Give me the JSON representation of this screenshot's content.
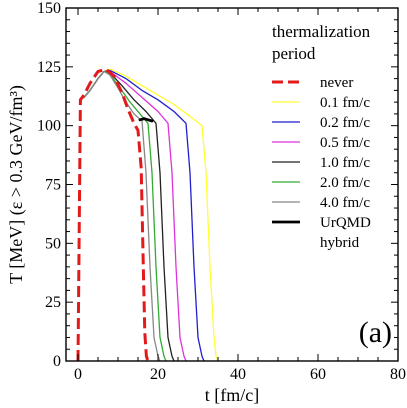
{
  "chart_data": {
    "type": "line",
    "xlabel": "t [fm/c]",
    "ylabel": "T [MeV] (ε > 0.3 GeV/fm³)",
    "xlim": [
      -3,
      80
    ],
    "ylim": [
      0,
      150
    ],
    "x_ticks": [
      0,
      20,
      40,
      60,
      80
    ],
    "y_ticks": [
      0,
      25,
      50,
      75,
      100,
      125,
      150
    ],
    "x_minor_step": 5,
    "y_minor_step": 5,
    "grid": false,
    "legend_title": [
      "thermalization",
      "period"
    ],
    "legend_position": "top-right",
    "annotation": "(a)",
    "series": [
      {
        "name": "never",
        "color": "#e31a1c",
        "dash": "dashed",
        "width": 3,
        "x": [
          0.0,
          0.6,
          1.5,
          3.0,
          5.0,
          7.0,
          9.0,
          11.0,
          12.5,
          14.0,
          15.0,
          15.8,
          16.3,
          16.7,
          17.1,
          17.5
        ],
        "y": [
          0,
          111,
          113,
          118,
          123,
          124,
          121,
          114,
          107,
          101,
          98,
          82,
          42,
          12,
          2,
          0
        ]
      },
      {
        "name": "0.1 fm/c",
        "color": "#ffff33",
        "dash": "solid",
        "width": 1.3,
        "x": [
          1.5,
          3.0,
          5.0,
          6.5,
          8.0,
          12.0,
          16.0,
          20.0,
          24.0,
          28.0,
          31.0,
          32.0,
          33.0,
          34.0,
          34.5,
          35.0
        ],
        "y": [
          112,
          115,
          120,
          123,
          124,
          121,
          117,
          113,
          109,
          104,
          100,
          80,
          40,
          10,
          2,
          0
        ]
      },
      {
        "name": "0.2 fm/c",
        "color": "#1f1fcc",
        "dash": "solid",
        "width": 1.3,
        "x": [
          1.5,
          3.0,
          5.0,
          6.5,
          8.0,
          12.0,
          16.0,
          20.0,
          24.0,
          27.0,
          28.0,
          29.0,
          30.0,
          31.0,
          31.5
        ],
        "y": [
          112,
          115,
          120,
          123,
          123.5,
          120,
          115,
          111,
          106,
          101,
          80,
          40,
          10,
          2,
          0
        ]
      },
      {
        "name": "0.5 fm/c",
        "color": "#dd33dd",
        "dash": "solid",
        "width": 1.3,
        "x": [
          1.5,
          3.0,
          5.0,
          6.5,
          8.0,
          12.0,
          16.0,
          20.0,
          22.5,
          23.5,
          24.5,
          25.5,
          26.5,
          27.0
        ],
        "y": [
          112,
          115,
          120,
          123,
          123,
          118,
          112,
          106,
          101,
          80,
          40,
          10,
          2,
          0
        ]
      },
      {
        "name": "1.0 fm/c",
        "color": "#222222",
        "dash": "solid",
        "width": 1.3,
        "x": [
          1.5,
          3.0,
          5.0,
          6.5,
          8.0,
          11.0,
          14.0,
          17.0,
          19.5,
          20.5,
          21.5,
          22.5,
          23.5,
          24.0
        ],
        "y": [
          112,
          115,
          120,
          123,
          122.5,
          117,
          111,
          106,
          101,
          80,
          40,
          10,
          2,
          0
        ]
      },
      {
        "name": "2.0 fm/c",
        "color": "#33aa33",
        "dash": "solid",
        "width": 1.3,
        "x": [
          1.5,
          3.0,
          5.0,
          6.5,
          8.0,
          10.5,
          13.0,
          15.5,
          17.5,
          18.5,
          19.5,
          20.5,
          21.5,
          22.0
        ],
        "y": [
          112,
          115,
          120,
          123,
          122,
          116,
          110,
          105,
          101,
          80,
          40,
          10,
          2,
          0
        ]
      },
      {
        "name": "4.0 fm/c",
        "color": "#888888",
        "dash": "solid",
        "width": 1.3,
        "x": [
          1.5,
          3.0,
          5.0,
          6.5,
          8.0,
          10.0,
          12.0,
          14.0,
          16.0,
          17.0,
          18.0,
          19.0,
          20.0,
          20.5
        ],
        "y": [
          112,
          115,
          120,
          123,
          121.5,
          116,
          110,
          105,
          102,
          80,
          40,
          10,
          2,
          0
        ]
      },
      {
        "name": "UrQMD hybrid",
        "color": "#000000",
        "dash": "solid",
        "width": 2.8,
        "x": [
          15.5,
          16.5,
          17.5,
          18.5
        ],
        "y": [
          102.5,
          103,
          102.5,
          102
        ]
      }
    ]
  }
}
